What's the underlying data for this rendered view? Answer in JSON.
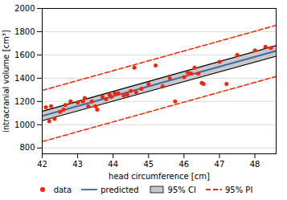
{
  "chart_data": {
    "type": "scatter",
    "xlabel": "head circumference [cm]",
    "ylabel": "intracranial volume [cm³]",
    "xlim": [
      42,
      48.6
    ],
    "ylim": [
      750,
      2000
    ],
    "xticks": [
      42,
      43,
      44,
      45,
      46,
      47,
      48
    ],
    "yticks": [
      800,
      1000,
      1200,
      1400,
      1600,
      1800,
      2000
    ],
    "grid": true,
    "legend": "bottom",
    "series": [
      {
        "name": "data",
        "type": "scatter",
        "color": "#ff2200",
        "x": [
          42.1,
          42.2,
          42.25,
          42.35,
          42.5,
          42.6,
          42.65,
          42.8,
          43.0,
          43.15,
          43.2,
          43.3,
          43.4,
          43.5,
          43.55,
          43.7,
          43.8,
          43.9,
          43.95,
          44.05,
          44.15,
          44.3,
          44.4,
          44.5,
          44.6,
          44.65,
          44.8,
          45.0,
          45.2,
          45.4,
          45.6,
          45.75,
          46.0,
          46.1,
          46.2,
          46.3,
          46.4,
          46.5,
          46.55,
          47.0,
          47.2,
          47.5,
          48.0,
          48.3,
          48.45
        ],
        "values": [
          1150,
          1030,
          1160,
          1050,
          1110,
          1130,
          1170,
          1200,
          1190,
          1200,
          1230,
          1160,
          1200,
          1160,
          1130,
          1240,
          1220,
          1260,
          1240,
          1270,
          1270,
          1250,
          1260,
          1290,
          1490,
          1280,
          1310,
          1350,
          1510,
          1330,
          1400,
          1200,
          1410,
          1450,
          1440,
          1490,
          1440,
          1360,
          1350,
          1540,
          1350,
          1600,
          1640,
          1670,
          1660
        ]
      },
      {
        "name": "predicted",
        "type": "line",
        "color": "#3366aa",
        "x": [
          42.0,
          48.6
        ],
        "values": [
          1075,
          1635
        ]
      },
      {
        "name": "95% CI",
        "type": "area",
        "color": "#c8c8c8",
        "x": [
          42.0,
          48.6
        ],
        "lower": [
          1035,
          1590
        ],
        "upper": [
          1115,
          1680
        ]
      },
      {
        "name": "95% PI",
        "type": "band",
        "color": "#ff2200",
        "line_style": "dashed",
        "x": [
          42.0,
          48.6
        ],
        "lower": [
          855,
          1415
        ],
        "upper": [
          1295,
          1855
        ]
      }
    ]
  }
}
